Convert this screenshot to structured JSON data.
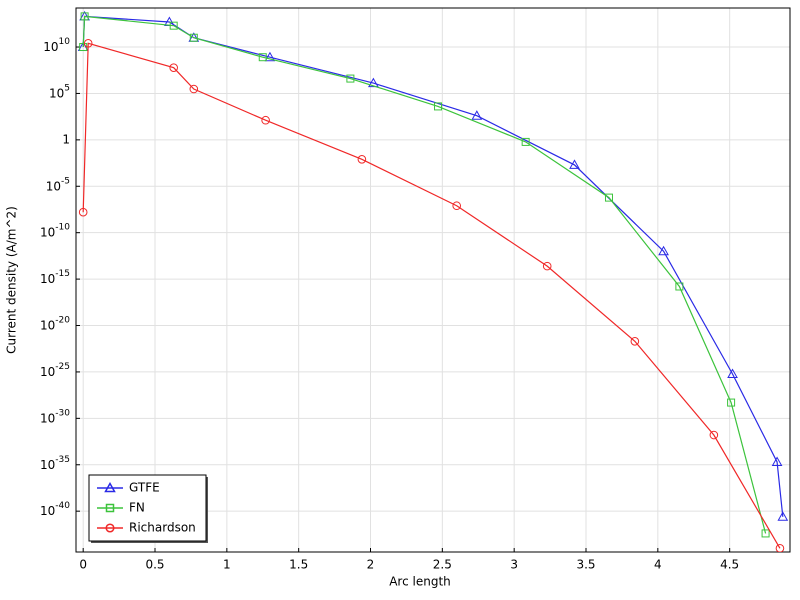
{
  "chart_data": {
    "type": "line",
    "xlabel": "Arc length",
    "ylabel": "Current density (A/m^2)",
    "xlim": [
      -0.05,
      4.92
    ],
    "ylim": [
      4e-45,
      160000000000000.0
    ],
    "yscale": "log",
    "grid": true,
    "legend": "lower left",
    "xticks": [
      0,
      0.5,
      1,
      1.5,
      2,
      2.5,
      3,
      3.5,
      4,
      4.5
    ],
    "yticks": [
      {
        "value": 10000000000.0,
        "label": {
          "base": "10",
          "exponent": "10"
        }
      },
      {
        "value": 100000.0,
        "label": {
          "base": "10",
          "exponent": "5"
        }
      },
      1,
      {
        "value": 1e-05,
        "label": {
          "base": "10",
          "exponent": "-5"
        }
      },
      {
        "value": 1e-10,
        "label": {
          "base": "10",
          "exponent": "-10"
        }
      },
      {
        "value": 1e-15,
        "label": {
          "base": "10",
          "exponent": "-15"
        }
      },
      {
        "value": 1e-20,
        "label": {
          "base": "10",
          "exponent": "-20"
        }
      },
      {
        "value": 1e-25,
        "label": {
          "base": "10",
          "exponent": "-25"
        }
      },
      {
        "value": 1e-30,
        "label": {
          "base": "10",
          "exponent": "-30"
        }
      },
      {
        "value": 1e-35,
        "label": {
          "base": "10",
          "exponent": "-35"
        }
      },
      {
        "value": 1e-40,
        "label": {
          "base": "10",
          "exponent": "-40"
        }
      }
    ],
    "series": [
      {
        "name": "GTFE",
        "color": "#2a2ae6",
        "marker": "triangle",
        "x": [
          0,
          0.01,
          0.6,
          0.77,
          1.3,
          2.02,
          2.74,
          3.42,
          4.04,
          4.52,
          4.83,
          4.87
        ],
        "values": [
          10000000000.0,
          20000000000000.0,
          5000000000000.0,
          100000000000.0,
          800000000.0,
          1300000.0,
          400,
          0.002,
          1e-12,
          6e-26,
          2e-35,
          2.5e-41
        ]
      },
      {
        "name": "FN",
        "color": "#3cc33c",
        "marker": "square",
        "x": [
          0,
          0.01,
          0.63,
          0.77,
          1.25,
          1.86,
          2.47,
          3.08,
          3.66,
          4.15,
          4.51,
          4.75
        ],
        "values": [
          10000000000.0,
          20000000000000.0,
          2000000000000.0,
          100000000000.0,
          800000000.0,
          4000000.0,
          4000,
          0.6,
          6e-07,
          1.6e-16,
          5e-29,
          4e-43
        ]
      },
      {
        "name": "Richardson",
        "color": "#f02828",
        "marker": "circle",
        "x": [
          0,
          0.035,
          0.63,
          0.77,
          1.27,
          1.94,
          2.6,
          3.23,
          3.84,
          4.39,
          4.85
        ],
        "values": [
          1.6e-08,
          25000000000.0,
          60000000.0,
          300000.0,
          130,
          0.008,
          8e-08,
          2.5e-14,
          2e-22,
          1.6e-32,
          1e-44
        ]
      }
    ]
  }
}
